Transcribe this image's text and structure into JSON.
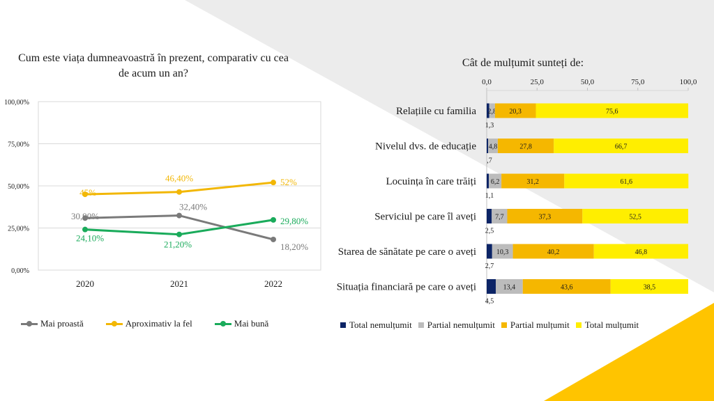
{
  "colors": {
    "grey_series": "#7a7a7a",
    "yellow_series": "#f2b705",
    "green_series": "#1aab5b",
    "total_nemultumit": "#0c2466",
    "partial_nemultumit": "#bcbcbc",
    "partial_multumit": "#f5b700",
    "total_multumit": "#ffee00",
    "bg_grey": "#ececec",
    "bg_yellow": "#ffc400"
  },
  "chart_data": [
    {
      "type": "line",
      "title": "Cum este viața dumneavoastră în prezent, comparativ cu cea de acum un an?",
      "categories": [
        "2020",
        "2021",
        "2022"
      ],
      "ylim": [
        0,
        100
      ],
      "y_ticks": [
        "100,00%",
        "75,00%",
        "50,00%",
        "25,00%",
        "0,00%"
      ],
      "grid": true,
      "legend_position": "bottom",
      "series": [
        {
          "name": "Mai proastă",
          "values": [
            30.9,
            32.4,
            18.2
          ],
          "labels": [
            "30,90%",
            "32,40%",
            "18,20%"
          ],
          "color_key": "grey_series"
        },
        {
          "name": "Aproximativ la fel",
          "values": [
            45,
            46.4,
            52
          ],
          "labels": [
            "45%",
            "46,40%",
            "52%"
          ],
          "color_key": "yellow_series"
        },
        {
          "name": "Mai bună",
          "values": [
            24.1,
            21.2,
            29.8
          ],
          "labels": [
            "24,10%",
            "21,20%",
            "29,80%"
          ],
          "color_key": "green_series"
        }
      ]
    },
    {
      "type": "bar",
      "orientation": "horizontal",
      "stacked": true,
      "title": "Cât de mulțumit sunteți de:",
      "xlim": [
        0,
        100
      ],
      "x_ticks": [
        "0,0",
        "25,0",
        "50,0",
        "75,0",
        "100,0"
      ],
      "legend_position": "bottom",
      "categories": [
        "Relațiile cu familia",
        "Nivelul dvs. de educație",
        "Locuința în care trăiți",
        "Serviciul pe care îl aveți",
        "Starea de sănătate pe care o aveți",
        "Situația financiară pe care o aveți"
      ],
      "series": [
        {
          "name": "Total nemulțumit",
          "values": [
            1.3,
            0.7,
            1.1,
            2.5,
            2.7,
            4.5
          ],
          "labels": [
            "1,3",
            ",7",
            "1,1",
            "2,5",
            "2,7",
            "4,5"
          ],
          "color_key": "total_nemultumit"
        },
        {
          "name": "Partial nemulțumit",
          "values": [
            2.8,
            4.8,
            6.2,
            7.7,
            10.3,
            13.4
          ],
          "labels": [
            "2,8",
            "4,8",
            "6,2",
            "7,7",
            "10,3",
            "13,4"
          ],
          "color_key": "partial_nemultumit"
        },
        {
          "name": "Partial mulțumit",
          "values": [
            20.3,
            27.8,
            31.2,
            37.3,
            40.2,
            43.6
          ],
          "labels": [
            "20,3",
            "27,8",
            "31,2",
            "37,3",
            "40,2",
            "43,6"
          ],
          "color_key": "partial_multumit"
        },
        {
          "name": "Total mulțumit",
          "values": [
            75.6,
            66.7,
            61.6,
            52.5,
            46.8,
            38.5
          ],
          "labels": [
            "75,6",
            "66,7",
            "61,6",
            "52,5",
            "46,8",
            "38,5"
          ],
          "color_key": "total_multumit"
        }
      ]
    }
  ]
}
